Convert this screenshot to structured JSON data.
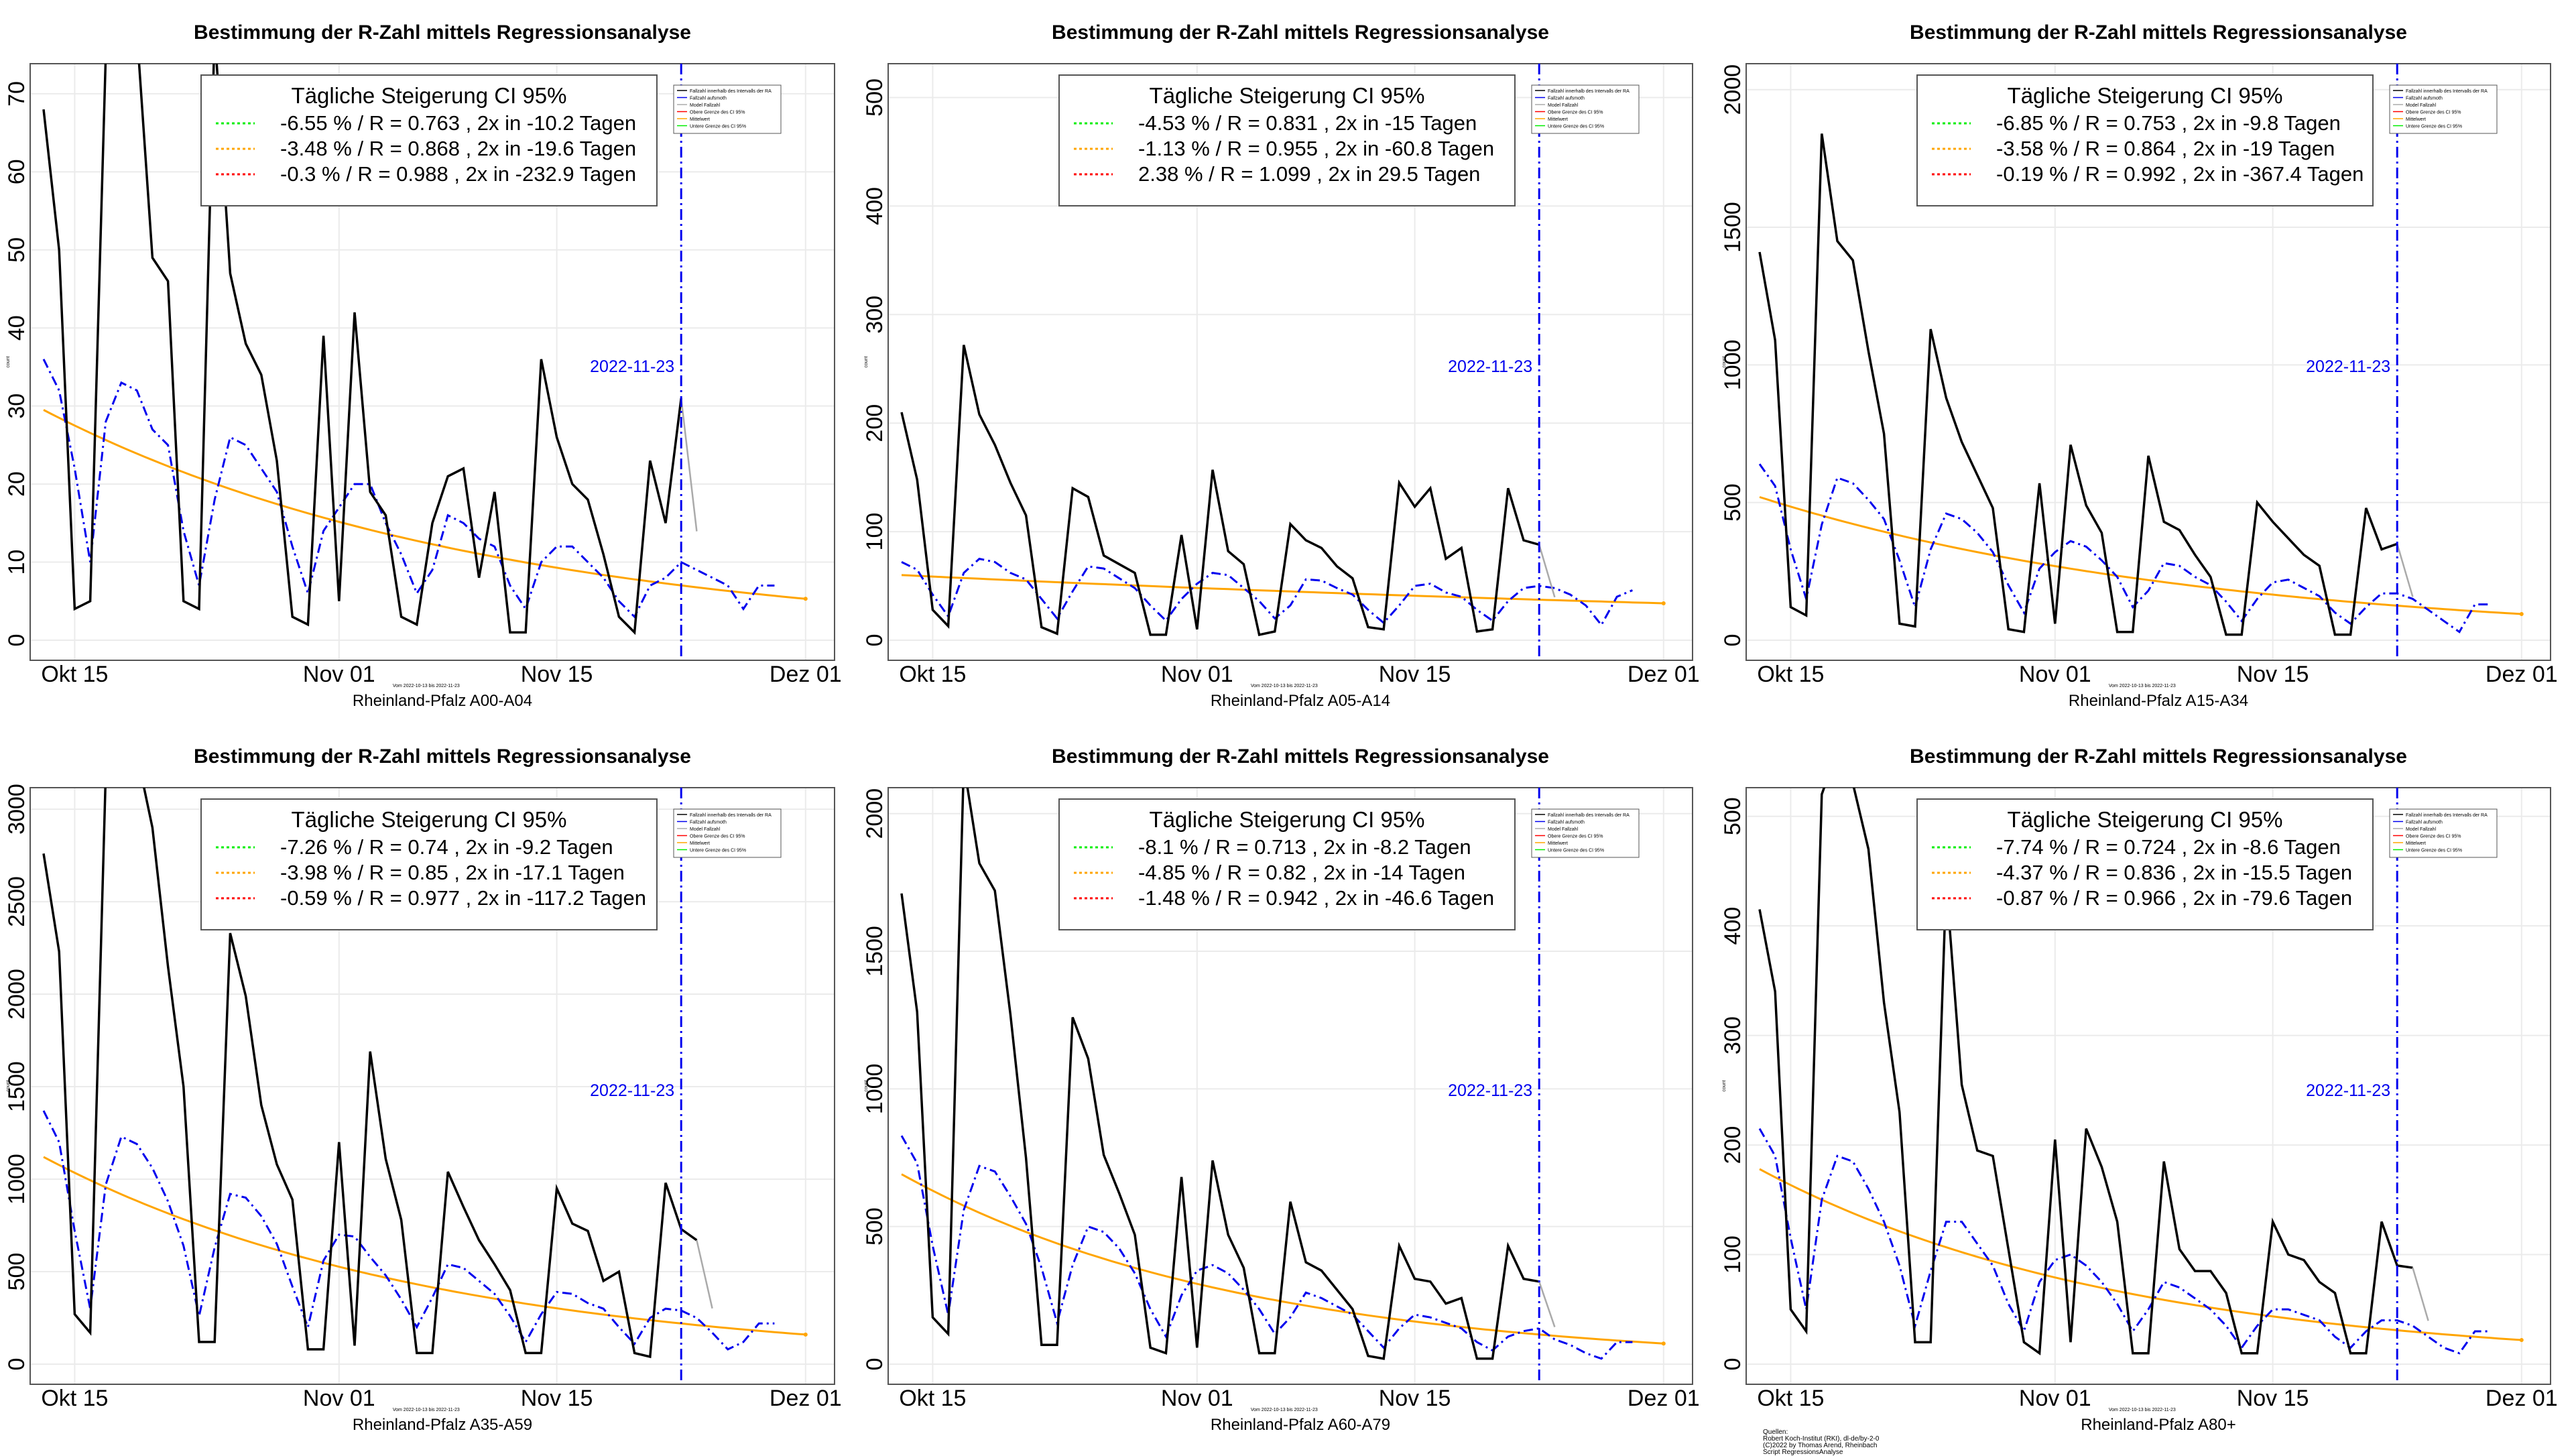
{
  "panels": [
    {
      "title": "Bestimmung der R-Zahl mittels Regressionsanalyse",
      "region": "Rheinland-Pfalz A00-A04",
      "yticks": [
        0,
        10,
        20,
        30,
        40,
        50,
        60,
        70
      ],
      "ymax": 73,
      "ylabel": "count",
      "legend": [
        "-6.55 % / R = 0.763 , 2x in -10.2 Tagen",
        "-3.48 % / R = 0.868 , 2x in -19.6 Tagen",
        "-0.3 % / R = 0.988 , 2x in -232.9 Tagen"
      ],
      "actual": [
        68,
        50,
        4,
        5,
        75,
        80,
        78,
        49,
        46,
        5,
        4,
        78,
        47,
        38,
        34,
        23,
        3,
        2,
        39,
        5,
        42,
        19,
        16,
        3,
        2,
        15,
        21,
        22,
        8,
        19,
        1,
        1,
        36,
        26,
        20,
        18,
        11,
        3,
        1,
        23,
        15,
        31
      ],
      "smoothed": [
        36,
        32,
        22,
        10,
        28,
        33,
        32,
        27,
        25,
        14,
        7,
        18,
        26,
        25,
        22,
        19,
        12,
        6,
        14,
        17,
        20,
        20,
        15,
        11,
        6,
        9,
        16,
        15,
        13,
        12,
        7,
        4,
        10,
        12,
        12,
        10,
        8,
        5,
        3,
        7,
        8,
        10
      ],
      "forecast": [
        9,
        8,
        7,
        4,
        7,
        7
      ],
      "trend": [
        29.5,
        5.3
      ]
    },
    {
      "title": "Bestimmung der R-Zahl mittels Regressionsanalyse",
      "region": "Rheinland-Pfalz A05-A14",
      "yticks": [
        0,
        100,
        200,
        300,
        400,
        500
      ],
      "ymax": 525,
      "ylabel": "count",
      "legend": [
        "-4.53 % / R = 0.831 , 2x in -15 Tagen",
        "-1.13 % / R = 0.955 , 2x in -60.8 Tagen",
        "2.38 % / R = 1.099 , 2x in 29.5 Tagen"
      ],
      "actual": [
        210,
        148,
        28,
        13,
        272,
        208,
        180,
        145,
        115,
        12,
        6,
        140,
        132,
        78,
        70,
        62,
        5,
        5,
        97,
        10,
        157,
        82,
        70,
        5,
        8,
        107,
        92,
        85,
        68,
        57,
        12,
        10,
        145,
        123,
        140,
        75,
        85,
        8,
        10,
        140,
        92,
        88
      ],
      "smoothed": [
        72,
        65,
        42,
        22,
        62,
        75,
        72,
        62,
        56,
        38,
        20,
        45,
        68,
        66,
        57,
        48,
        32,
        18,
        38,
        52,
        62,
        60,
        48,
        36,
        20,
        32,
        56,
        55,
        48,
        42,
        28,
        16,
        32,
        50,
        52,
        44,
        40,
        28,
        18,
        36,
        48,
        50
      ],
      "forecast": [
        48,
        42,
        32,
        14,
        40,
        46
      ],
      "trend": [
        60,
        34
      ]
    },
    {
      "title": "Bestimmung der R-Zahl mittels Regressionsanalyse",
      "region": "Rheinland-Pfalz A15-A34",
      "yticks": [
        0,
        500,
        1000,
        1500,
        2000
      ],
      "ymax": 2070,
      "ylabel": "count",
      "legend": [
        "-6.85 % / R = 0.753 , 2x in -9.8 Tagen",
        "-3.58 % / R = 0.864 , 2x in -19 Tagen",
        "-0.19 % / R = 0.992 , 2x in -367.4 Tagen"
      ],
      "actual": [
        1410,
        1090,
        120,
        90,
        1840,
        1450,
        1380,
        1050,
        750,
        60,
        50,
        1130,
        880,
        720,
        600,
        480,
        40,
        30,
        570,
        60,
        710,
        490,
        390,
        30,
        30,
        670,
        430,
        400,
        310,
        230,
        20,
        20,
        500,
        430,
        370,
        310,
        270,
        20,
        20,
        480,
        330,
        350
      ],
      "smoothed": [
        640,
        560,
        330,
        150,
        420,
        590,
        570,
        510,
        440,
        290,
        120,
        330,
        460,
        440,
        390,
        320,
        200,
        100,
        260,
        320,
        360,
        340,
        290,
        230,
        120,
        180,
        280,
        270,
        230,
        200,
        140,
        70,
        150,
        210,
        220,
        190,
        160,
        100,
        60,
        120,
        170,
        170
      ],
      "forecast": [
        150,
        110,
        70,
        30,
        130,
        130
      ],
      "trend": [
        520,
        95
      ]
    },
    {
      "title": "Bestimmung der R-Zahl mittels Regressionsanalyse",
      "region": "Rheinland-Pfalz A35-A59",
      "yticks": [
        0,
        500,
        1000,
        1500,
        2000,
        2500,
        3000
      ],
      "ymax": 3080,
      "ylabel": "count",
      "legend": [
        "-7.26 % / R = 0.74 , 2x in -9.2 Tagen",
        "-3.98 % / R = 0.85 , 2x in -17.1 Tagen",
        "-0.59 % / R = 0.977 , 2x in -117.2 Tagen"
      ],
      "actual": [
        2760,
        2230,
        270,
        170,
        3200,
        3400,
        3300,
        2900,
        2150,
        1500,
        120,
        120,
        2330,
        1990,
        1400,
        1080,
        890,
        80,
        80,
        1200,
        100,
        1690,
        1110,
        780,
        60,
        60,
        1040,
        850,
        670,
        540,
        400,
        60,
        60,
        950,
        760,
        720,
        450,
        500,
        60,
        40,
        980,
        730,
        670
      ],
      "smoothed": [
        1370,
        1200,
        720,
        300,
        970,
        1230,
        1190,
        1060,
        880,
        640,
        260,
        630,
        920,
        900,
        800,
        650,
        420,
        200,
        560,
        700,
        690,
        580,
        480,
        350,
        200,
        360,
        540,
        520,
        450,
        380,
        260,
        120,
        270,
        390,
        380,
        330,
        300,
        200,
        110,
        250,
        300,
        290
      ],
      "forecast": [
        250,
        170,
        80,
        120,
        220,
        220
      ],
      "trend": [
        1120,
        160
      ]
    },
    {
      "title": "Bestimmung der R-Zahl mittels Regressionsanalyse",
      "region": "Rheinland-Pfalz A60-A79",
      "yticks": [
        0,
        500,
        1000,
        1500,
        2000
      ],
      "ymax": 2070,
      "ylabel": "count",
      "legend": [
        "-8.1 % / R = 0.713 , 2x in -8.2 Tagen",
        "-4.85 % / R = 0.82 , 2x in -14 Tagen",
        "-1.48 % / R = 0.942 , 2x in -46.6 Tagen"
      ],
      "actual": [
        1710,
        1280,
        170,
        110,
        2180,
        1820,
        1720,
        1270,
        750,
        70,
        70,
        1260,
        1110,
        760,
        620,
        470,
        60,
        40,
        680,
        60,
        740,
        470,
        350,
        40,
        40,
        590,
        370,
        340,
        270,
        200,
        30,
        20,
        430,
        310,
        300,
        220,
        240,
        20,
        20,
        430,
        310,
        300
      ],
      "smoothed": [
        830,
        730,
        430,
        180,
        560,
        720,
        700,
        610,
        510,
        350,
        150,
        360,
        500,
        480,
        420,
        330,
        200,
        100,
        250,
        340,
        360,
        330,
        270,
        200,
        110,
        170,
        260,
        240,
        210,
        180,
        120,
        60,
        130,
        180,
        170,
        150,
        130,
        80,
        50,
        100,
        120,
        130
      ],
      "forecast": [
        90,
        70,
        40,
        20,
        80,
        80
      ],
      "trend": [
        690,
        75
      ]
    },
    {
      "title": "Bestimmung der R-Zahl mittels Regressionsanalyse",
      "region": "Rheinland-Pfalz A80+",
      "yticks": [
        0,
        100,
        200,
        300,
        400,
        500
      ],
      "ymax": 520,
      "ylabel": "count",
      "legend": [
        "-7.74 % / R = 0.724 , 2x in -8.6 Tagen",
        "-4.37 % / R = 0.836 , 2x in -15.5 Tagen",
        "-0.87 % / R = 0.966 , 2x in -79.6 Tagen"
      ],
      "actual": [
        415,
        340,
        50,
        30,
        520,
        560,
        530,
        470,
        330,
        230,
        20,
        20,
        440,
        255,
        195,
        190,
        105,
        20,
        10,
        205,
        20,
        215,
        180,
        130,
        10,
        10,
        185,
        105,
        85,
        85,
        65,
        10,
        10,
        130,
        100,
        95,
        75,
        65,
        10,
        10,
        130,
        90,
        88
      ],
      "smoothed": [
        215,
        190,
        115,
        50,
        150,
        190,
        185,
        160,
        130,
        90,
        35,
        85,
        130,
        130,
        110,
        90,
        55,
        30,
        75,
        95,
        100,
        90,
        75,
        55,
        30,
        50,
        75,
        70,
        60,
        50,
        35,
        15,
        35,
        50,
        50,
        45,
        40,
        25,
        15,
        30,
        40,
        40
      ],
      "forecast": [
        35,
        25,
        15,
        10,
        30,
        30
      ],
      "trend": [
        178,
        22
      ]
    }
  ],
  "legend_title": "Tägliche Steigerung CI  95%",
  "legend_colors": [
    "#00ee00",
    "#ffa500",
    "#ff0000"
  ],
  "xticks": [
    "Okt 15",
    "Nov 01",
    "Nov 15",
    "Dez 01"
  ],
  "vline_date": "2022-11-23",
  "small_legend": [
    "Fallzahl innerhalb des Intervalls der RA",
    "Fallzahl aufsmoth",
    "Model Fallzahl",
    "Obere Grenze des CI 95%",
    "Mittelwert",
    "Untere Grenze des CI 95%"
  ],
  "small_caption": "Vom 2022-10-13 bis 2022-11-23",
  "sources": [
    "Quellen:",
    "Robert Koch-Institut (RKI), dl-de/by-2-0",
    "(C)2022 by Thomas Arend, Rheinbach",
    "Script RegressionsAnalyse"
  ],
  "colors": {
    "actual": "#000000",
    "smoothed": "#0000ee",
    "trend": "#ffa500",
    "vline": "#0000ee",
    "forecast": "#aaaaaa"
  }
}
